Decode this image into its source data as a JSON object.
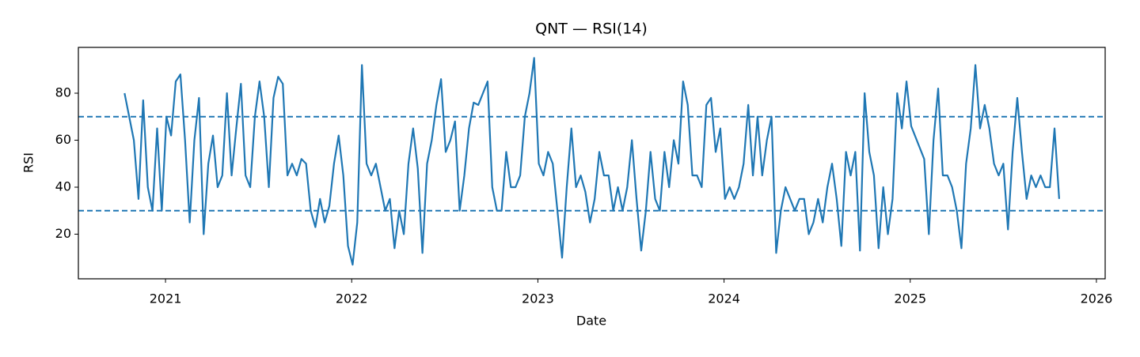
{
  "chart_data": {
    "type": "line",
    "title": "QNT — RSI(14)",
    "x_label": "Date",
    "y_label": "RSI",
    "x": [
      2020.78,
      2020.805,
      2020.83,
      2020.855,
      2020.88,
      2020.905,
      2020.93,
      2020.955,
      2020.98,
      2021.005,
      2021.03,
      2021.055,
      2021.08,
      2021.105,
      2021.13,
      2021.155,
      2021.18,
      2021.205,
      2021.23,
      2021.255,
      2021.28,
      2021.305,
      2021.33,
      2021.355,
      2021.38,
      2021.405,
      2021.43,
      2021.455,
      2021.48,
      2021.505,
      2021.53,
      2021.555,
      2021.58,
      2021.605,
      2021.63,
      2021.655,
      2021.68,
      2021.705,
      2021.73,
      2021.755,
      2021.78,
      2021.805,
      2021.83,
      2021.855,
      2021.88,
      2021.905,
      2021.93,
      2021.955,
      2021.98,
      2022.005,
      2022.03,
      2022.055,
      2022.08,
      2022.105,
      2022.13,
      2022.155,
      2022.18,
      2022.205,
      2022.23,
      2022.255,
      2022.28,
      2022.305,
      2022.33,
      2022.355,
      2022.38,
      2022.405,
      2022.43,
      2022.455,
      2022.48,
      2022.505,
      2022.53,
      2022.555,
      2022.58,
      2022.605,
      2022.63,
      2022.655,
      2022.68,
      2022.705,
      2022.73,
      2022.755,
      2022.78,
      2022.805,
      2022.83,
      2022.855,
      2022.88,
      2022.905,
      2022.93,
      2022.955,
      2022.98,
      2023.005,
      2023.03,
      2023.055,
      2023.08,
      2023.105,
      2023.13,
      2023.155,
      2023.18,
      2023.205,
      2023.23,
      2023.255,
      2023.28,
      2023.305,
      2023.33,
      2023.355,
      2023.38,
      2023.405,
      2023.43,
      2023.455,
      2023.48,
      2023.505,
      2023.53,
      2023.555,
      2023.58,
      2023.605,
      2023.63,
      2023.655,
      2023.68,
      2023.705,
      2023.73,
      2023.755,
      2023.78,
      2023.805,
      2023.83,
      2023.855,
      2023.88,
      2023.905,
      2023.93,
      2023.955,
      2023.98,
      2024.005,
      2024.03,
      2024.055,
      2024.08,
      2024.105,
      2024.13,
      2024.155,
      2024.18,
      2024.205,
      2024.23,
      2024.255,
      2024.28,
      2024.305,
      2024.33,
      2024.355,
      2024.38,
      2024.405,
      2024.43,
      2024.455,
      2024.48,
      2024.505,
      2024.53,
      2024.555,
      2024.58,
      2024.605,
      2024.63,
      2024.655,
      2024.68,
      2024.705,
      2024.73,
      2024.755,
      2024.78,
      2024.805,
      2024.83,
      2024.855,
      2024.88,
      2024.905,
      2024.93,
      2024.955,
      2024.98,
      2025.005,
      2025.075,
      2025.1,
      2025.125,
      2025.15,
      2025.175,
      2025.2,
      2025.225,
      2025.25,
      2025.275,
      2025.3,
      2025.325,
      2025.35,
      2025.375,
      2025.4,
      2025.425,
      2025.45,
      2025.475,
      2025.5,
      2025.525,
      2025.55,
      2025.575,
      2025.6,
      2025.625,
      2025.65,
      2025.675,
      2025.7,
      2025.725,
      2025.75,
      2025.775,
      2025.8
    ],
    "series": [
      {
        "name": "RSI",
        "color": "#1f77b4",
        "values": [
          80,
          70,
          60,
          35,
          77,
          40,
          30,
          65,
          30,
          70,
          62,
          85,
          88,
          60,
          25,
          60,
          78,
          20,
          50,
          62,
          40,
          45,
          80,
          45,
          65,
          84,
          45,
          40,
          70,
          85,
          70,
          40,
          78,
          87,
          84,
          45,
          50,
          45,
          52,
          50,
          30,
          23,
          35,
          25,
          32,
          50,
          62,
          45,
          15,
          7,
          25,
          92,
          50,
          45,
          50,
          40,
          30,
          35,
          14,
          30,
          20,
          50,
          65,
          48,
          12,
          50,
          60,
          75,
          86,
          55,
          60,
          68,
          30,
          45,
          65,
          76,
          75,
          80,
          85,
          40,
          30,
          30,
          55,
          40,
          40,
          45,
          70,
          80,
          95,
          50,
          45,
          55,
          50,
          30,
          10,
          40,
          65,
          40,
          45,
          38,
          25,
          35,
          55,
          45,
          45,
          30,
          40,
          30,
          40,
          60,
          35,
          13,
          30,
          55,
          35,
          30,
          55,
          40,
          60,
          50,
          85,
          75,
          45,
          45,
          40,
          75,
          78,
          55,
          65,
          35,
          40,
          35,
          40,
          50,
          75,
          45,
          70,
          45,
          60,
          70,
          12,
          30,
          40,
          35,
          30,
          35,
          35,
          20,
          25,
          35,
          25,
          40,
          50,
          35,
          15,
          55,
          45,
          55,
          13,
          80,
          55,
          45,
          14,
          40,
          20,
          35,
          80,
          65,
          85,
          66,
          52,
          20,
          60,
          82,
          45,
          45,
          40,
          30,
          14,
          50,
          65,
          92,
          65,
          75,
          65,
          50,
          45,
          50,
          22,
          55,
          78,
          55,
          35,
          45,
          40,
          45,
          40,
          40,
          65,
          35
        ]
      }
    ],
    "hlines": [
      70,
      30
    ],
    "xlim": [
      2020.532,
      2026.047
    ],
    "xticks": [
      2021,
      2022,
      2023,
      2024,
      2025,
      2026
    ],
    "ylim": [
      1.0,
      99.5
    ],
    "yticks": [
      20,
      40,
      60,
      80
    ],
    "grid": false
  }
}
